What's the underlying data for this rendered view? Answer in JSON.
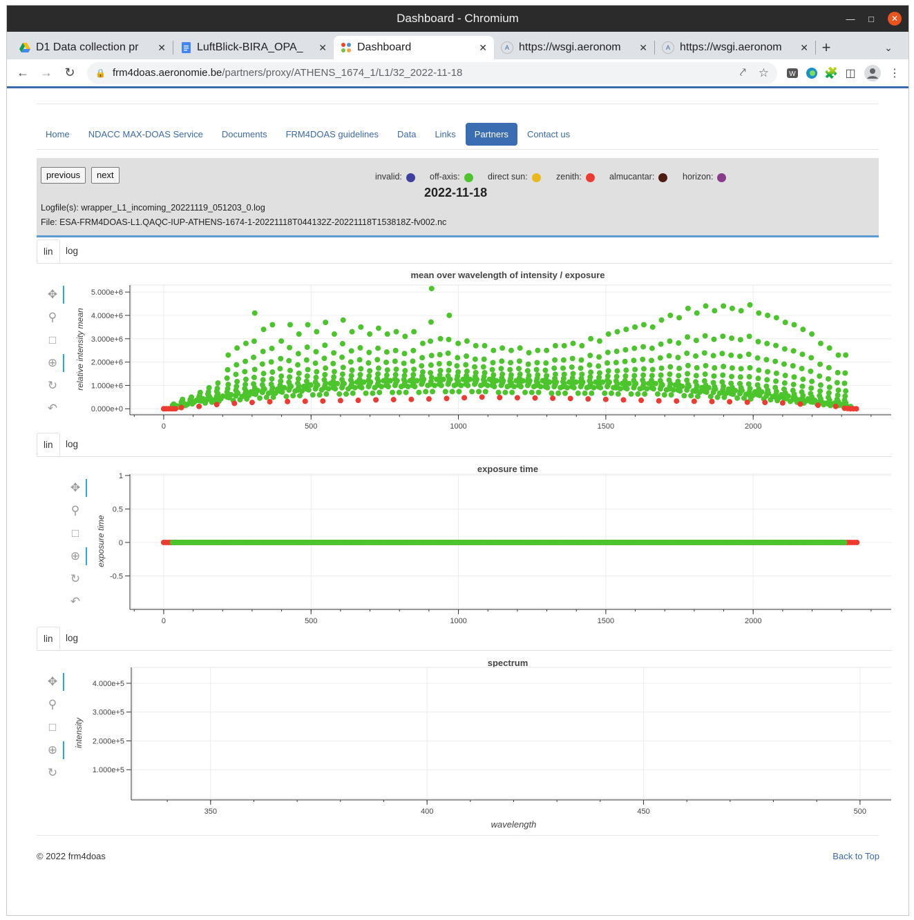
{
  "browser": {
    "window_title": "Dashboard - Chromium",
    "tabs": [
      {
        "label": "D1 Data collection pr",
        "icon": "google-drive-icon"
      },
      {
        "label": "LuftBlick-BIRA_OPA_",
        "icon": "google-docs-icon"
      },
      {
        "label": "Dashboard",
        "icon": "joomla-icon"
      },
      {
        "label": "https://wsgi.aeronom",
        "icon": "site-a-icon"
      },
      {
        "label": "https://wsgi.aeronom",
        "icon": "site-a-icon"
      }
    ],
    "url_host": "frm4doas.aeronomie.be",
    "url_path": "/partners/proxy/ATHENS_1674_1/L1/32_2022-11-18"
  },
  "nav": {
    "items": [
      "Home",
      "NDACC MAX-DOAS Service",
      "Documents",
      "FRM4DOAS guidelines",
      "Data",
      "Links",
      "Partners",
      "Contact us"
    ],
    "active": "Partners"
  },
  "header": {
    "previous_label": "previous",
    "next_label": "next",
    "date": "2022-11-18",
    "logfile": "Logfile(s): wrapper_L1_incoming_20221119_051203_0.log",
    "file": "File: ESA-FRM4DOAS-L1.QAQC-IUP-ATHENS-1674-1-20221118T044132Z-20221118T153818Z-fv002.nc",
    "legend": [
      {
        "label": "invalid:",
        "color": "#3f3f9e"
      },
      {
        "label": "off-axis:",
        "color": "#4cc42c"
      },
      {
        "label": "direct sun:",
        "color": "#e8b81c"
      },
      {
        "label": "zenith:",
        "color": "#ee3b32"
      },
      {
        "label": "almucantar:",
        "color": "#4f1c12"
      },
      {
        "label": "horizon:",
        "color": "#8a3a8a"
      }
    ]
  },
  "scale_toggle": {
    "lin": "lin",
    "log": "log"
  },
  "chart_data": [
    {
      "type": "scatter",
      "title": "mean over wavelength of intensity / exposure",
      "xlabel": "",
      "ylabel": "relative intensity mean",
      "xlim": [
        -110,
        2480
      ],
      "ylim": [
        -200000,
        5300000
      ],
      "xticks": [
        0,
        500,
        1000,
        1500,
        2000
      ],
      "yticks": [
        0,
        1000000,
        2000000,
        3000000,
        4000000,
        5000000
      ],
      "ytick_labels": [
        "0.000e+0",
        "1.000e+6",
        "2.000e+6",
        "3.000e+6",
        "4.000e+6",
        "5.000e+6"
      ],
      "series": [
        {
          "name": "zenith",
          "color": "#ee3b32",
          "x": [
            0,
            8,
            16,
            24,
            32,
            40,
            60,
            120,
            180,
            240,
            300,
            360,
            420,
            480,
            540,
            600,
            660,
            720,
            780,
            840,
            900,
            960,
            1020,
            1080,
            1140,
            1200,
            1260,
            1320,
            1380,
            1440,
            1500,
            1560,
            1620,
            1680,
            1740,
            1800,
            1860,
            1920,
            1980,
            2040,
            2100,
            2160,
            2220,
            2280,
            2310,
            2320,
            2330,
            2340,
            2350
          ],
          "y": [
            0,
            0,
            0,
            0,
            0,
            0,
            50000,
            100000,
            180000,
            230000,
            270000,
            300000,
            310000,
            320000,
            330000,
            350000,
            360000,
            380000,
            390000,
            400000,
            420000,
            440000,
            470000,
            500000,
            480000,
            470000,
            460000,
            450000,
            440000,
            420000,
            400000,
            380000,
            360000,
            340000,
            330000,
            320000,
            310000,
            300000,
            280000,
            270000,
            250000,
            200000,
            150000,
            100000,
            20000,
            10000,
            0,
            0,
            0
          ]
        },
        {
          "name": "off-axis",
          "color": "#4cc42c",
          "peaks_x": [
            30,
            60,
            90,
            120,
            150,
            180,
            215,
            245,
            275,
            305,
            335,
            365,
            395,
            425,
            455,
            485,
            515,
            545,
            575,
            605,
            635,
            665,
            695,
            725,
            755,
            785,
            815,
            845,
            875,
            905,
            935,
            965,
            995,
            1025,
            1055,
            1085,
            1115,
            1145,
            1175,
            1205,
            1235,
            1265,
            1295,
            1325,
            1355,
            1385,
            1415,
            1445,
            1475,
            1505,
            1535,
            1565,
            1595,
            1625,
            1655,
            1685,
            1715,
            1745,
            1775,
            1805,
            1835,
            1865,
            1895,
            1925,
            1955,
            1985,
            2015,
            2045,
            2075,
            2105,
            2135,
            2165,
            2195,
            2225,
            2255,
            2285,
            2310
          ],
          "peaks_y": [
            200000,
            400000,
            500000,
            700000,
            900000,
            1100000,
            2300000,
            2600000,
            2800000,
            4100000,
            3400000,
            3600000,
            2900000,
            3600000,
            3200000,
            3600000,
            3300000,
            3700000,
            3200000,
            3800000,
            3300000,
            3500000,
            3200000,
            3450000,
            3200000,
            3300000,
            3100000,
            3300000,
            2800000,
            5150000,
            3000000,
            4000000,
            2800000,
            2900000,
            2700000,
            2700000,
            2500000,
            2600000,
            2500000,
            2600000,
            2400000,
            2500000,
            2500000,
            2700000,
            2700000,
            2800000,
            2700000,
            3000000,
            2900000,
            3200000,
            3300000,
            3400000,
            3500000,
            3600000,
            3500000,
            3800000,
            4000000,
            3900000,
            4300000,
            4100000,
            4400000,
            4200000,
            4400000,
            4300000,
            4200000,
            4450000,
            4100000,
            4000000,
            3900000,
            3700000,
            3600000,
            3400000,
            3200000,
            2800000,
            2600000,
            2300000,
            2300000
          ],
          "baseline_y": [
            100000,
            200000,
            300000,
            350000,
            400000,
            450000,
            500000,
            550000,
            600000,
            650000,
            700000,
            700000,
            750000,
            800000,
            800000,
            850000,
            850000,
            900000,
            900000,
            900000,
            950000,
            950000,
            950000,
            1000000,
            1000000,
            1000000,
            1000000,
            1000000,
            1050000,
            1050000,
            1050000,
            1050000,
            1050000,
            1050000,
            1050000,
            1050000,
            1000000,
            1000000,
            1000000,
            1000000,
            1000000,
            1000000,
            950000,
            950000,
            950000,
            950000,
            950000,
            950000,
            950000,
            950000,
            900000,
            900000,
            900000,
            900000,
            900000,
            850000,
            850000,
            800000,
            800000,
            750000,
            750000,
            700000,
            700000,
            650000,
            650000,
            600000,
            600000,
            550000,
            500000,
            450000,
            400000,
            350000,
            300000,
            250000,
            200000,
            150000,
            100000
          ]
        }
      ]
    },
    {
      "type": "scatter",
      "title": "exposure time",
      "xlabel": "",
      "ylabel": "exposure time",
      "xlim": [
        -110,
        2480
      ],
      "ylim": [
        -0.98,
        1.02
      ],
      "xticks": [
        0,
        500,
        1000,
        1500,
        2000
      ],
      "yticks": [
        -0.5,
        0,
        0.5,
        1
      ],
      "ytick_labels": [
        "-0.5",
        "0",
        "0.5",
        "1"
      ],
      "series": [
        {
          "name": "zenith",
          "color": "#ee3b32",
          "x_range": [
            0,
            2355
          ],
          "y": 0
        },
        {
          "name": "off-axis",
          "color": "#4cc42c",
          "x_range": [
            30,
            2310
          ],
          "y": 0
        }
      ]
    },
    {
      "type": "line",
      "title": "spectrum",
      "xlabel": "wavelength",
      "ylabel": "intensity",
      "xlim": [
        332,
        508
      ],
      "ylim": [
        0,
        455000
      ],
      "xticks": [
        350,
        400,
        450,
        500
      ],
      "yticks": [
        100000,
        200000,
        300000,
        400000
      ],
      "ytick_labels": [
        "1.000e+5",
        "2.000e+5",
        "3.000e+5",
        "4.000e+5"
      ],
      "series": []
    }
  ],
  "footer": {
    "copyright": "© 2022 frm4doas",
    "back_to_top": "Back to Top"
  }
}
